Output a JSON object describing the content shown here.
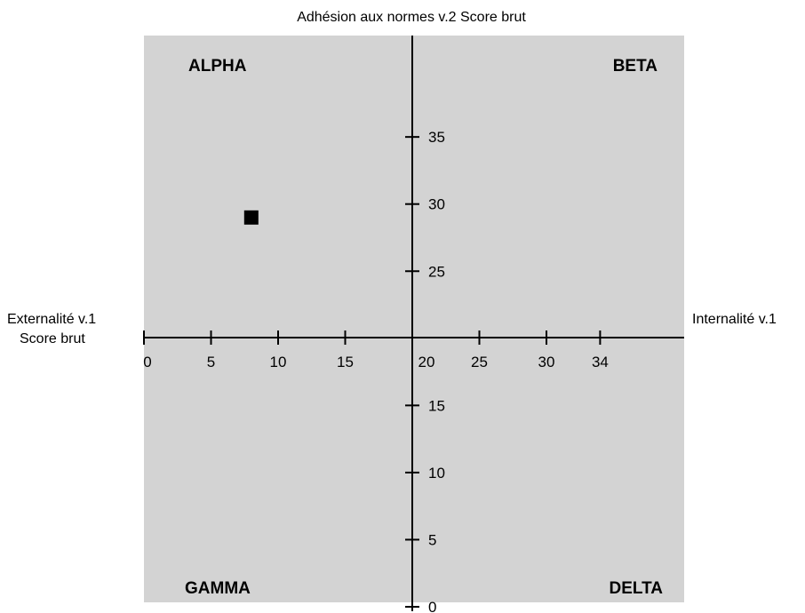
{
  "chart_data": {
    "type": "scatter",
    "title": "Adhésion aux normes v.2 Score brut",
    "x_axis": {
      "left_label_line1": "Externalité v.1",
      "left_label_line2": "Score brut",
      "right_label": "Internalité v.1",
      "ticks": [
        0,
        5,
        10,
        15,
        20,
        25,
        30,
        34
      ],
      "range": [
        0,
        40
      ]
    },
    "y_axis": {
      "ticks": [
        0,
        5,
        10,
        15,
        25,
        30,
        35
      ],
      "range": [
        0,
        42
      ]
    },
    "quadrants": {
      "top_left": "ALPHA",
      "top_right": "BETA",
      "bottom_left": "GAMMA",
      "bottom_right": "DELTA"
    },
    "points": [
      {
        "x": 8,
        "y": 29
      }
    ],
    "colors": {
      "plot_background": "#d3d3d3",
      "axis": "#000000",
      "marker": "#000000"
    },
    "grid": false
  }
}
